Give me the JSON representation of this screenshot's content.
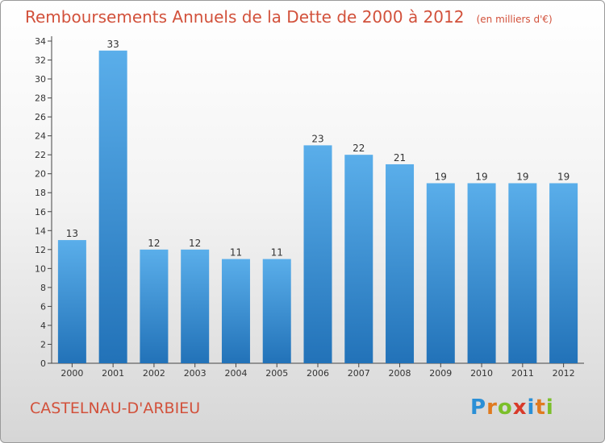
{
  "title": "Remboursements Annuels de la Dette de 2000 à 2012",
  "subtitle": "(en milliers d'€)",
  "city": "CASTELNAU-D'ARBIEU",
  "logo": {
    "text": "Proxiti",
    "letters": [
      "P",
      "r",
      "o",
      "x",
      "i",
      "t",
      "i"
    ],
    "colors": [
      "#2a8fd6",
      "#e07a1f",
      "#7bbf2a",
      "#d83a2a",
      "#2a8fd6",
      "#e07a1f",
      "#7bbf2a"
    ]
  },
  "colors": {
    "bar": "#3d94d8",
    "text": "#d2513b"
  },
  "chart_data": {
    "type": "bar",
    "categories": [
      "2000",
      "2001",
      "2002",
      "2003",
      "2004",
      "2005",
      "2006",
      "2007",
      "2008",
      "2009",
      "2010",
      "2011",
      "2012"
    ],
    "values": [
      13,
      33,
      12,
      12,
      11,
      11,
      23,
      22,
      21,
      19,
      19,
      19,
      19
    ],
    "yticks": [
      0,
      2,
      4,
      6,
      8,
      10,
      12,
      14,
      16,
      18,
      20,
      22,
      24,
      26,
      28,
      30,
      32,
      34
    ],
    "ylim": [
      0,
      34
    ],
    "title": "Remboursements Annuels de la Dette de 2000 à 2012",
    "xlabel": "",
    "ylabel": "",
    "grid": false
  }
}
